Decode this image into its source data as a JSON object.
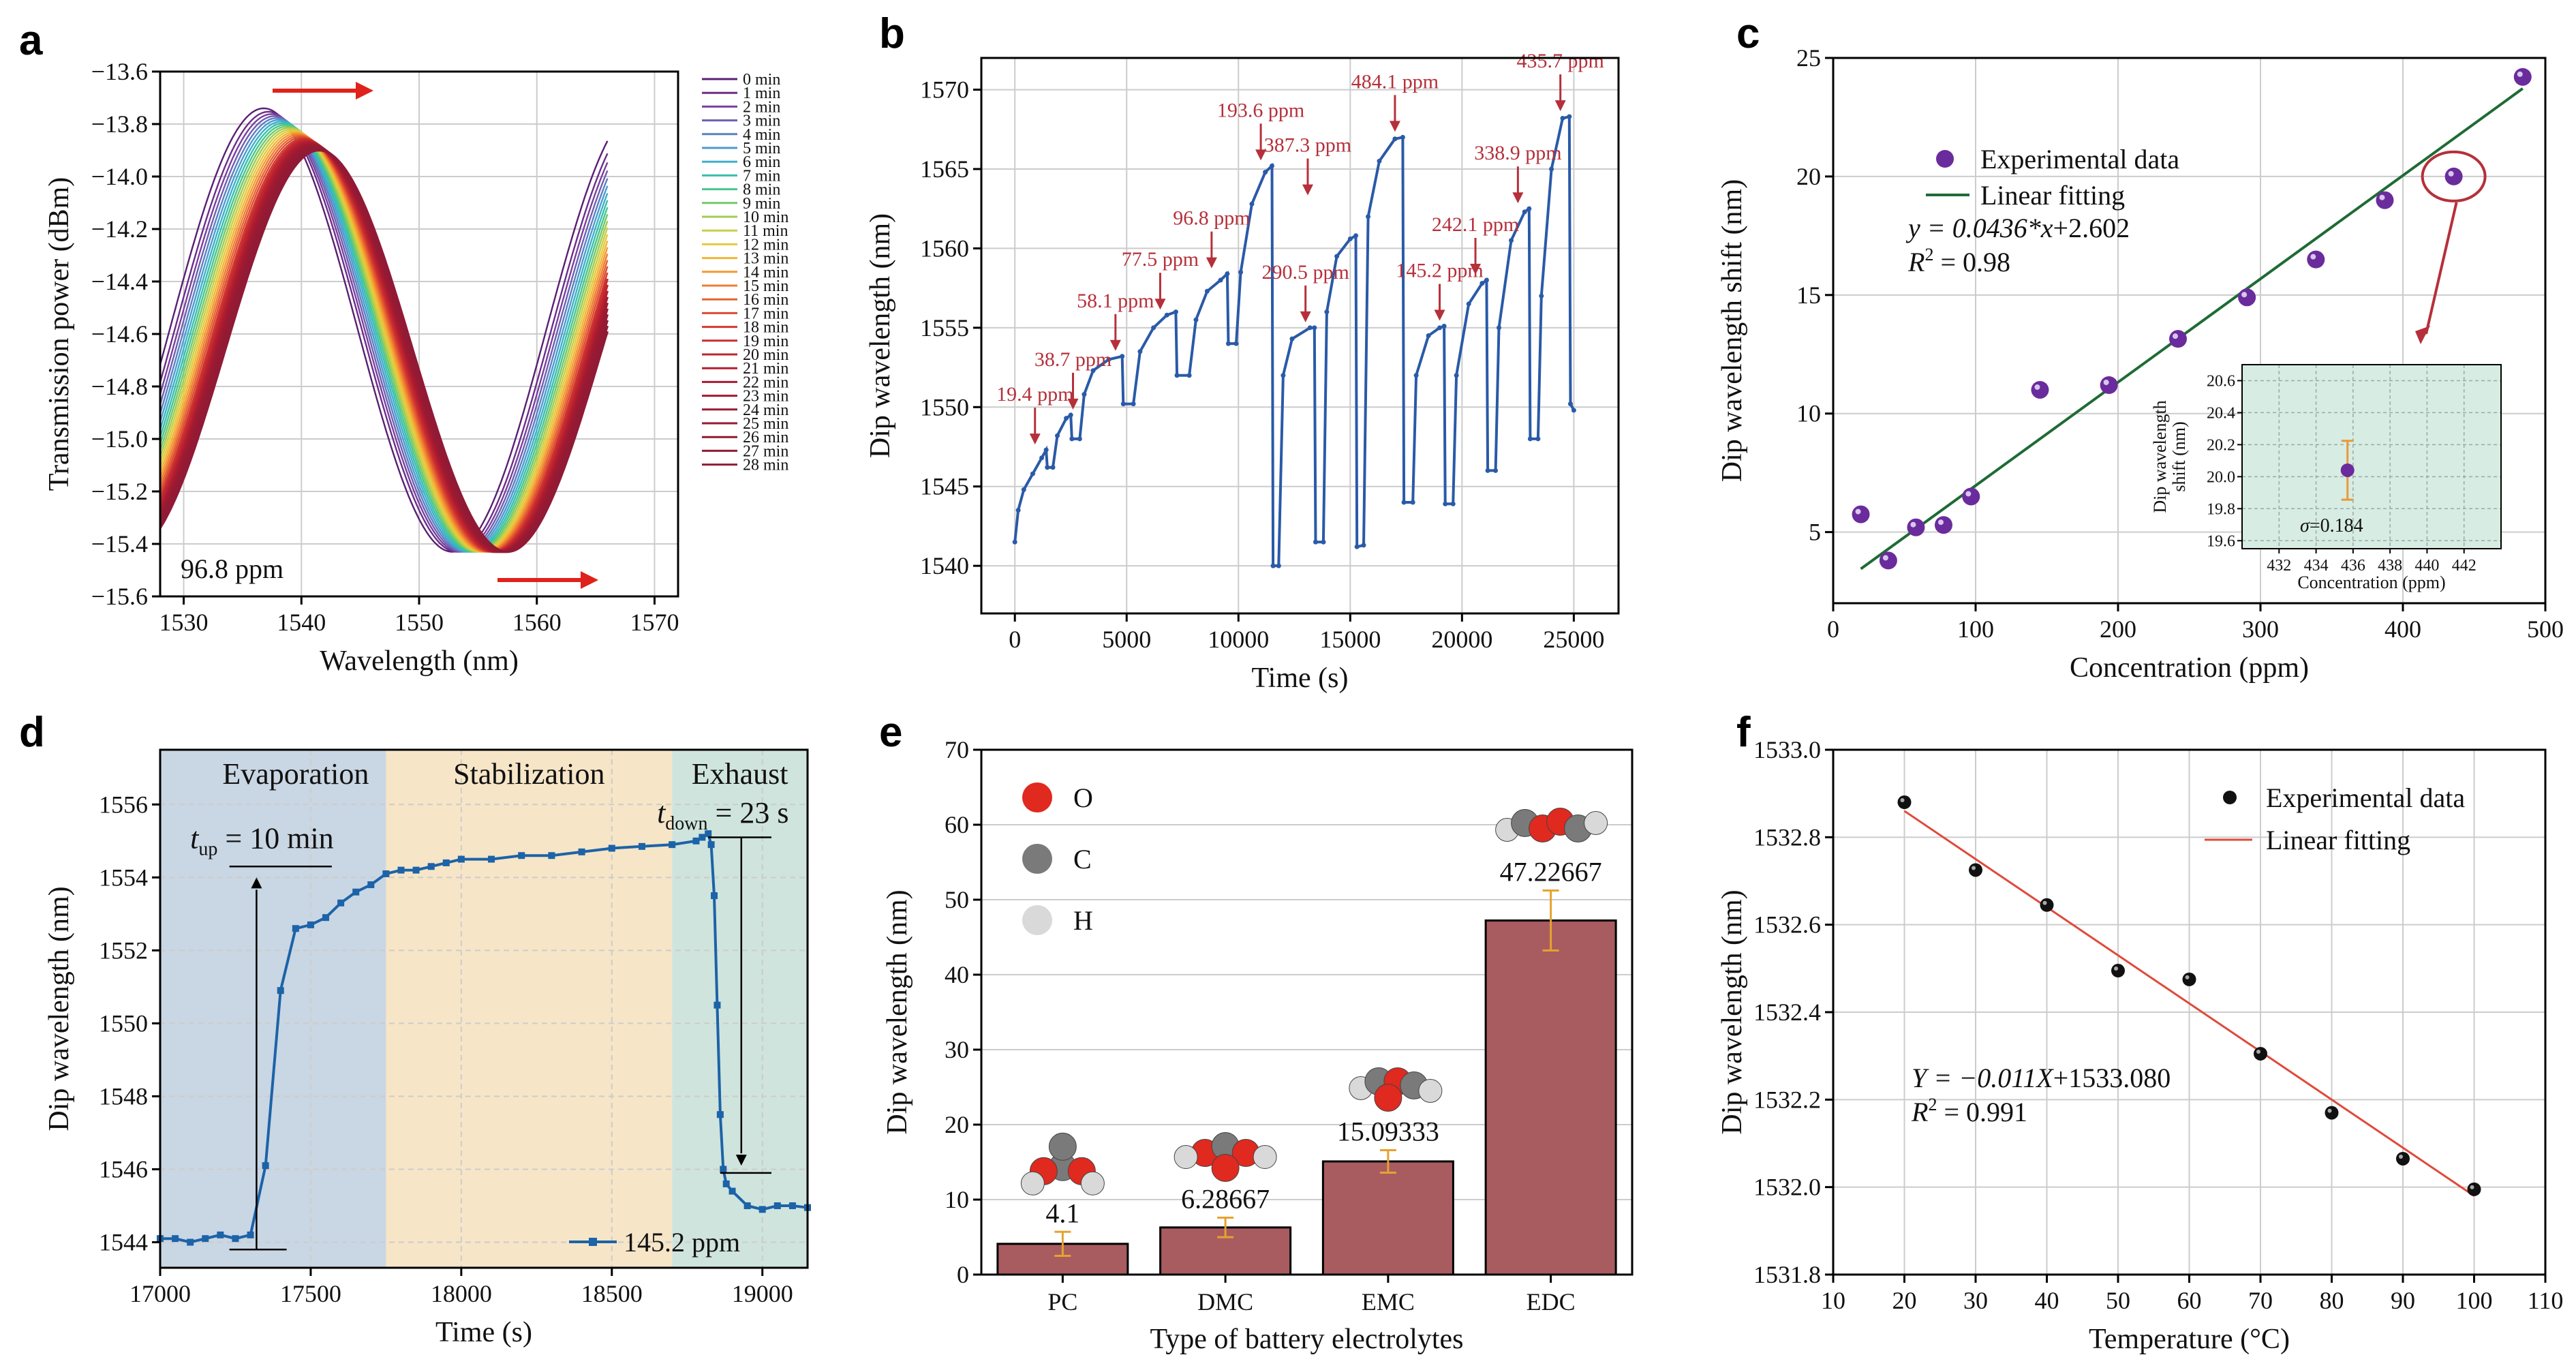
{
  "chart_data": [
    {
      "panel": "a",
      "type": "line",
      "xlabel": "Wavelength (nm)",
      "ylabel": "Transmission power (dBm)",
      "xlim": [
        1528,
        1572
      ],
      "ylim": [
        -15.6,
        -13.6
      ],
      "xticks": [
        1530,
        1540,
        1550,
        1560,
        1570
      ],
      "yticks": [
        -13.6,
        -13.8,
        -14.0,
        -14.2,
        -14.4,
        -14.6,
        -14.8,
        -15.0,
        -15.2,
        -15.4,
        -15.6
      ],
      "xtick_labels": [
        "1530",
        "1540",
        "1550",
        "1560",
        "1570"
      ],
      "ytick_labels": [
        "−13.6",
        "−13.8",
        "−14.0",
        "−14.2",
        "−14.4",
        "−14.6",
        "−14.8",
        "−15.0",
        "−15.2",
        "−15.4",
        "−15.6"
      ],
      "annotation": "96.8 ppm",
      "series_names": [
        "0 min",
        "1 min",
        "2 min",
        "3 min",
        "4 min",
        "5 min",
        "6 min",
        "7 min",
        "8 min",
        "9 min",
        "10 min",
        "11 min",
        "12 min",
        "13 min",
        "14 min",
        "15 min",
        "16 min",
        "17 min",
        "18 min",
        "19 min",
        "20 min",
        "21 min",
        "22 min",
        "23 min",
        "24 min",
        "25 min",
        "26 min",
        "27 min",
        "28 min"
      ],
      "peak_wavelength_first": 1536.8,
      "peak_wavelength_last": 1541.5,
      "dip_wavelength_first": 1552.8,
      "dip_wavelength_last": 1557.5,
      "grid": true
    },
    {
      "panel": "b",
      "type": "line",
      "xlabel": "Time (s)",
      "ylabel": "Dip wavelength (nm)",
      "xlim": [
        -1500,
        27000
      ],
      "ylim": [
        1537,
        1572
      ],
      "xticks": [
        0,
        5000,
        10000,
        15000,
        20000,
        25000
      ],
      "yticks": [
        1540,
        1545,
        1550,
        1555,
        1560,
        1565,
        1570
      ],
      "xtick_labels": [
        "0",
        "5000",
        "10000",
        "15000",
        "20000",
        "25000"
      ],
      "ytick_labels": [
        "1540",
        "1545",
        "1550",
        "1555",
        "1560",
        "1565",
        "1570"
      ],
      "points": [
        [
          0,
          1541.5
        ],
        [
          150,
          1543.5
        ],
        [
          400,
          1544.8
        ],
        [
          800,
          1545.8
        ],
        [
          1200,
          1546.8
        ],
        [
          1400,
          1547.3
        ],
        [
          1450,
          1546.2
        ],
        [
          1700,
          1546.2
        ],
        [
          1900,
          1548.2
        ],
        [
          2300,
          1549.3
        ],
        [
          2500,
          1549.5
        ],
        [
          2550,
          1548
        ],
        [
          2900,
          1548
        ],
        [
          3100,
          1550.8
        ],
        [
          3500,
          1552.3
        ],
        [
          4200,
          1553
        ],
        [
          4800,
          1553.2
        ],
        [
          4850,
          1550.2
        ],
        [
          5300,
          1550.2
        ],
        [
          5600,
          1553.5
        ],
        [
          6200,
          1555
        ],
        [
          6800,
          1555.8
        ],
        [
          7200,
          1556
        ],
        [
          7250,
          1552
        ],
        [
          7800,
          1552
        ],
        [
          8100,
          1555.5
        ],
        [
          8600,
          1557.3
        ],
        [
          9200,
          1558
        ],
        [
          9500,
          1558.4
        ],
        [
          9550,
          1554
        ],
        [
          9900,
          1554
        ],
        [
          10100,
          1558.5
        ],
        [
          10600,
          1562.8
        ],
        [
          11200,
          1564.8
        ],
        [
          11500,
          1565.2
        ],
        [
          11550,
          1540
        ],
        [
          11800,
          1540
        ],
        [
          12000,
          1552
        ],
        [
          12400,
          1554.3
        ],
        [
          13200,
          1555
        ],
        [
          13400,
          1555
        ],
        [
          13450,
          1541.5
        ],
        [
          13800,
          1541.5
        ],
        [
          13950,
          1556
        ],
        [
          14400,
          1559.5
        ],
        [
          15000,
          1560.6
        ],
        [
          15250,
          1560.8
        ],
        [
          15300,
          1541.2
        ],
        [
          15600,
          1541.3
        ],
        [
          15800,
          1562
        ],
        [
          16300,
          1565.5
        ],
        [
          17000,
          1566.9
        ],
        [
          17350,
          1567
        ],
        [
          17400,
          1544
        ],
        [
          17800,
          1544
        ],
        [
          17950,
          1552
        ],
        [
          18500,
          1554.5
        ],
        [
          19000,
          1555
        ],
        [
          19200,
          1555.1
        ],
        [
          19250,
          1543.9
        ],
        [
          19600,
          1543.9
        ],
        [
          19750,
          1552
        ],
        [
          20300,
          1556.5
        ],
        [
          20900,
          1557.8
        ],
        [
          21100,
          1558
        ],
        [
          21150,
          1546
        ],
        [
          21500,
          1546
        ],
        [
          21650,
          1555
        ],
        [
          22200,
          1560.5
        ],
        [
          22800,
          1562.3
        ],
        [
          23000,
          1562.5
        ],
        [
          23050,
          1548
        ],
        [
          23400,
          1548
        ],
        [
          23550,
          1557
        ],
        [
          24000,
          1565
        ],
        [
          24500,
          1568.2
        ],
        [
          24800,
          1568.3
        ],
        [
          24850,
          1550.2
        ],
        [
          25000,
          1549.8
        ]
      ],
      "annotations": [
        {
          "label": "19.4 ppm",
          "x": 900,
          "y": 1547.3
        },
        {
          "label": "38.7 ppm",
          "x": 2600,
          "y": 1549.5
        },
        {
          "label": "58.1 ppm",
          "x": 4500,
          "y": 1553.2
        },
        {
          "label": "77.5 ppm",
          "x": 6500,
          "y": 1555.8
        },
        {
          "label": "96.8 ppm",
          "x": 8800,
          "y": 1558.4
        },
        {
          "label": "193.6 ppm",
          "x": 11000,
          "y": 1565.2
        },
        {
          "label": "387.3 ppm",
          "x": 13100,
          "y": 1563.0
        },
        {
          "label": "290.5 ppm",
          "x": 13000,
          "y": 1555
        },
        {
          "label": "484.1 ppm",
          "x": 17000,
          "y": 1567
        },
        {
          "label": "242.1 ppm",
          "x": 20600,
          "y": 1558
        },
        {
          "label": "145.2 ppm",
          "x": 19000,
          "y": 1555.1
        },
        {
          "label": "338.9 ppm",
          "x": 22500,
          "y": 1562.5
        },
        {
          "label": "435.7 ppm",
          "x": 24400,
          "y": 1568.3
        }
      ],
      "grid": true
    },
    {
      "panel": "c",
      "type": "scatter",
      "xlabel": "Concentration (ppm)",
      "ylabel": "Dip wavelength shift (nm)",
      "xlim": [
        0,
        500
      ],
      "ylim": [
        2,
        25
      ],
      "xticks": [
        0,
        100,
        200,
        300,
        400,
        500
      ],
      "yticks": [
        5,
        10,
        15,
        20,
        25
      ],
      "xtick_labels": [
        "0",
        "100",
        "200",
        "300",
        "400",
        "500"
      ],
      "ytick_labels": [
        "5",
        "10",
        "15",
        "20",
        "25"
      ],
      "x": [
        19.4,
        38.7,
        58.1,
        77.5,
        96.8,
        145.2,
        193.6,
        242.1,
        290.5,
        338.9,
        387.3,
        435.7,
        484.1
      ],
      "y": [
        5.75,
        3.8,
        5.2,
        5.3,
        6.5,
        11.0,
        11.2,
        13.15,
        14.9,
        16.5,
        19.0,
        20.0,
        24.2
      ],
      "fit": {
        "slope": 0.0436,
        "intercept": 2.602
      },
      "legend": [
        "Experimental data",
        "Linear fitting"
      ],
      "equation_lead": "y = 0.0436*",
      "equation_var": "x",
      "equation_tail": "+2.602",
      "r2_lead": "R",
      "r2_sup": "2",
      "r2_tail": " = 0.98",
      "inset": {
        "xlabel": "Concentration (ppm)",
        "ylabel_line1": "Dip wavelength",
        "ylabel_line2": "shift (nm)",
        "xlim": [
          430,
          444
        ],
        "ylim": [
          19.55,
          20.7
        ],
        "xticks": [
          432,
          434,
          436,
          438,
          440,
          442
        ],
        "yticks": [
          19.6,
          19.8,
          20.0,
          20.2,
          20.4,
          20.6
        ],
        "xtick_labels": [
          "432",
          "434",
          "436",
          "438",
          "440",
          "442"
        ],
        "ytick_labels": [
          "19.6",
          "19.8",
          "20.0",
          "20.2",
          "20.4",
          "20.6"
        ],
        "point": {
          "x": 435.7,
          "y": 20.04,
          "err": 0.184
        },
        "sigma_label": "σ",
        "sigma_value": "=0.184"
      },
      "grid": true
    },
    {
      "panel": "d",
      "type": "line",
      "xlabel": "Time (s)",
      "ylabel": "Dip wavelength (nm)",
      "xlim": [
        17000,
        19150
      ],
      "ylim": [
        1543.3,
        1557.5
      ],
      "xticks": [
        17000,
        17500,
        18000,
        18500,
        19000
      ],
      "yticks": [
        1544,
        1546,
        1548,
        1550,
        1552,
        1554,
        1556
      ],
      "xtick_labels": [
        "17000",
        "17500",
        "18000",
        "18500",
        "19000"
      ],
      "ytick_labels": [
        "1544",
        "1546",
        "1548",
        "1550",
        "1552",
        "1554",
        "1556"
      ],
      "regions": [
        {
          "label": "Evaporation",
          "x0": 17000,
          "x1": 17750,
          "color": "#c9d6e3"
        },
        {
          "label": "Stabilization",
          "x0": 17750,
          "x1": 18700,
          "color": "#f6e5c7"
        },
        {
          "label": "Exhaust",
          "x0": 18700,
          "x1": 19150,
          "color": "#cfe4dc"
        }
      ],
      "points": [
        [
          17000,
          1544.1
        ],
        [
          17050,
          1544.1
        ],
        [
          17100,
          1544
        ],
        [
          17150,
          1544.1
        ],
        [
          17200,
          1544.2
        ],
        [
          17250,
          1544.1
        ],
        [
          17300,
          1544.2
        ],
        [
          17350,
          1546.1
        ],
        [
          17400,
          1550.9
        ],
        [
          17450,
          1552.6
        ],
        [
          17500,
          1552.7
        ],
        [
          17550,
          1552.9
        ],
        [
          17600,
          1553.3
        ],
        [
          17650,
          1553.6
        ],
        [
          17700,
          1553.8
        ],
        [
          17750,
          1554.1
        ],
        [
          17800,
          1554.2
        ],
        [
          17850,
          1554.2
        ],
        [
          17900,
          1554.3
        ],
        [
          17950,
          1554.4
        ],
        [
          18000,
          1554.5
        ],
        [
          18100,
          1554.5
        ],
        [
          18200,
          1554.6
        ],
        [
          18300,
          1554.6
        ],
        [
          18400,
          1554.7
        ],
        [
          18500,
          1554.8
        ],
        [
          18600,
          1554.85
        ],
        [
          18700,
          1554.9
        ],
        [
          18780,
          1555
        ],
        [
          18800,
          1555.1
        ],
        [
          18820,
          1555.2
        ],
        [
          18830,
          1554.9
        ],
        [
          18840,
          1553.5
        ],
        [
          18850,
          1550.5
        ],
        [
          18860,
          1547.5
        ],
        [
          18870,
          1546
        ],
        [
          18880,
          1545.6
        ],
        [
          18900,
          1545.4
        ],
        [
          18950,
          1545
        ],
        [
          19000,
          1544.9
        ],
        [
          19050,
          1545
        ],
        [
          19100,
          1545
        ],
        [
          19150,
          1544.95
        ]
      ],
      "t_up_sub": "up",
      "t_up_value": " = 10 min",
      "t_down_sub": "down",
      "t_down_value": " = 23 s",
      "legend": "145.2 ppm",
      "grid": true
    },
    {
      "panel": "e",
      "type": "bar",
      "xlabel": "Type of battery electrolytes",
      "ylabel": "Dip wavelength (nm)",
      "ylim": [
        0,
        70
      ],
      "yticks": [
        0,
        10,
        20,
        30,
        40,
        50,
        60,
        70
      ],
      "ytick_labels": [
        "0",
        "10",
        "20",
        "30",
        "40",
        "50",
        "60",
        "70"
      ],
      "categories": [
        "PC",
        "DMC",
        "EMC",
        "EDC"
      ],
      "values": [
        4.1,
        6.28667,
        15.09333,
        47.22667
      ],
      "value_labels": [
        "4.1",
        "6.28667",
        "15.09333",
        "47.22667"
      ],
      "errors": [
        1.6,
        1.3,
        1.5,
        4.0
      ],
      "legend": [
        {
          "label": "O",
          "color": "#e0291f"
        },
        {
          "label": "C",
          "color": "#7a7a7a"
        },
        {
          "label": "H",
          "color": "#d9d9d9"
        }
      ],
      "bar_color": "#a85c60",
      "grid": true
    },
    {
      "panel": "f",
      "type": "scatter",
      "xlabel": "Temperature (°C)",
      "ylabel": "Dip wavelength (nm)",
      "xlim": [
        10,
        110
      ],
      "ylim": [
        1531.8,
        1533.0
      ],
      "xticks": [
        10,
        20,
        30,
        40,
        50,
        60,
        70,
        80,
        90,
        100,
        110
      ],
      "yticks": [
        1531.8,
        1532.0,
        1532.2,
        1532.4,
        1532.6,
        1532.8,
        1533.0
      ],
      "xtick_labels": [
        "10",
        "20",
        "30",
        "40",
        "50",
        "60",
        "70",
        "80",
        "90",
        "100",
        "110"
      ],
      "ytick_labels": [
        "1531.8",
        "1532.0",
        "1532.2",
        "1532.4",
        "1532.6",
        "1532.8",
        "1533.0"
      ],
      "x": [
        20,
        30,
        40,
        50,
        60,
        70,
        80,
        90,
        100
      ],
      "y": [
        1532.88,
        1532.725,
        1532.645,
        1532.495,
        1532.475,
        1532.305,
        1532.17,
        1532.065,
        1531.995
      ],
      "fit": {
        "slope": -0.011,
        "intercept": 1533.08
      },
      "legend": [
        "Experimental data",
        "Linear fitting"
      ],
      "equation_lead": "Y = −0.011",
      "equation_var": "X",
      "equation_tail": "+1533.080",
      "r2_lead": "R",
      "r2_sup": "2",
      "r2_tail": " = 0.991",
      "grid": true
    }
  ]
}
